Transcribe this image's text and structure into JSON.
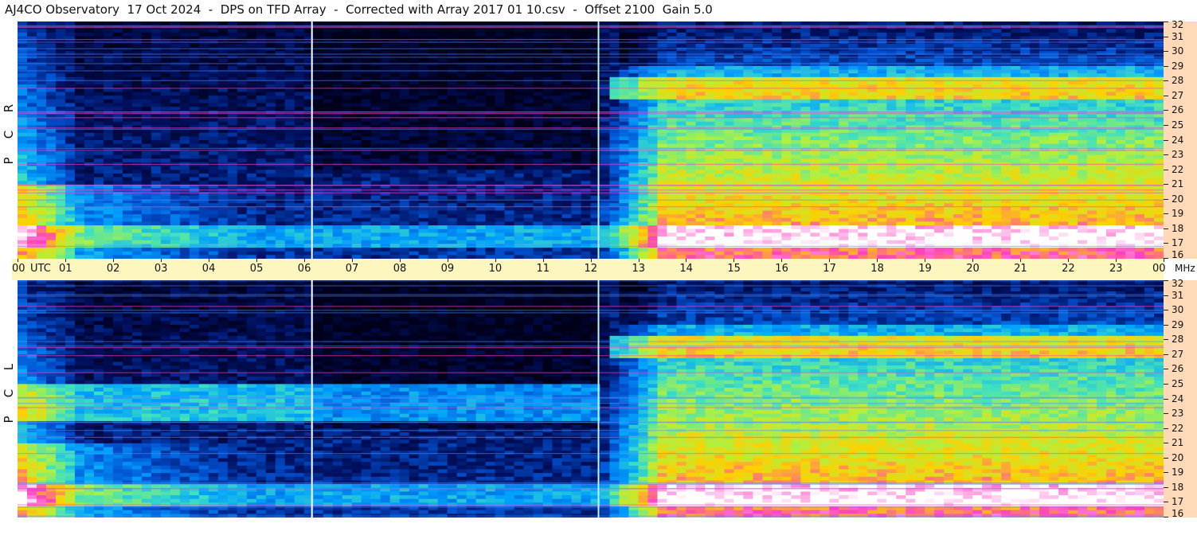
{
  "title": "AJ4CO Observatory  17 Oct 2024  -  DPS on TFD Array  -  Corrected with Array 2017 01 10.csv  -  Offset 2100  Gain 5.0",
  "unit_label": "MHz",
  "utc_label": "UTC",
  "colors": {
    "background": "#ffffff",
    "freq_axis_bg": "#ffd9b8",
    "time_axis_bg": "#fdf7bf",
    "marker_white": "#ffffff",
    "marker_cyan": "#bff7ee",
    "colormap": [
      "#00001a",
      "#001060",
      "#0050d0",
      "#00a0ff",
      "#40e0c0",
      "#b0f040",
      "#ffd000",
      "#ff40c0",
      "#ffffff"
    ]
  },
  "chart_data": {
    "type": "heatmap",
    "x_label": "UTC",
    "y_label": "MHz",
    "x_range_hours": [
      0,
      24
    ],
    "y_range_mhz": [
      16,
      32
    ],
    "x_ticks": [
      "00",
      "01",
      "02",
      "03",
      "04",
      "05",
      "06",
      "07",
      "08",
      "09",
      "10",
      "11",
      "12",
      "13",
      "14",
      "15",
      "16",
      "17",
      "18",
      "19",
      "20",
      "21",
      "22",
      "23",
      "00"
    ],
    "y_ticks": [
      32,
      31,
      30,
      29,
      28,
      27,
      26,
      25,
      24,
      23,
      22,
      21,
      20,
      19,
      18,
      17,
      16
    ],
    "marker_lines_utc": [
      6.15,
      12.15
    ],
    "panels": [
      {
        "polarization": "RCP",
        "letters": [
          "R",
          "C",
          "P"
        ]
      },
      {
        "polarization": "LCP",
        "letters": [
          "L",
          "C",
          "P"
        ]
      }
    ]
  }
}
